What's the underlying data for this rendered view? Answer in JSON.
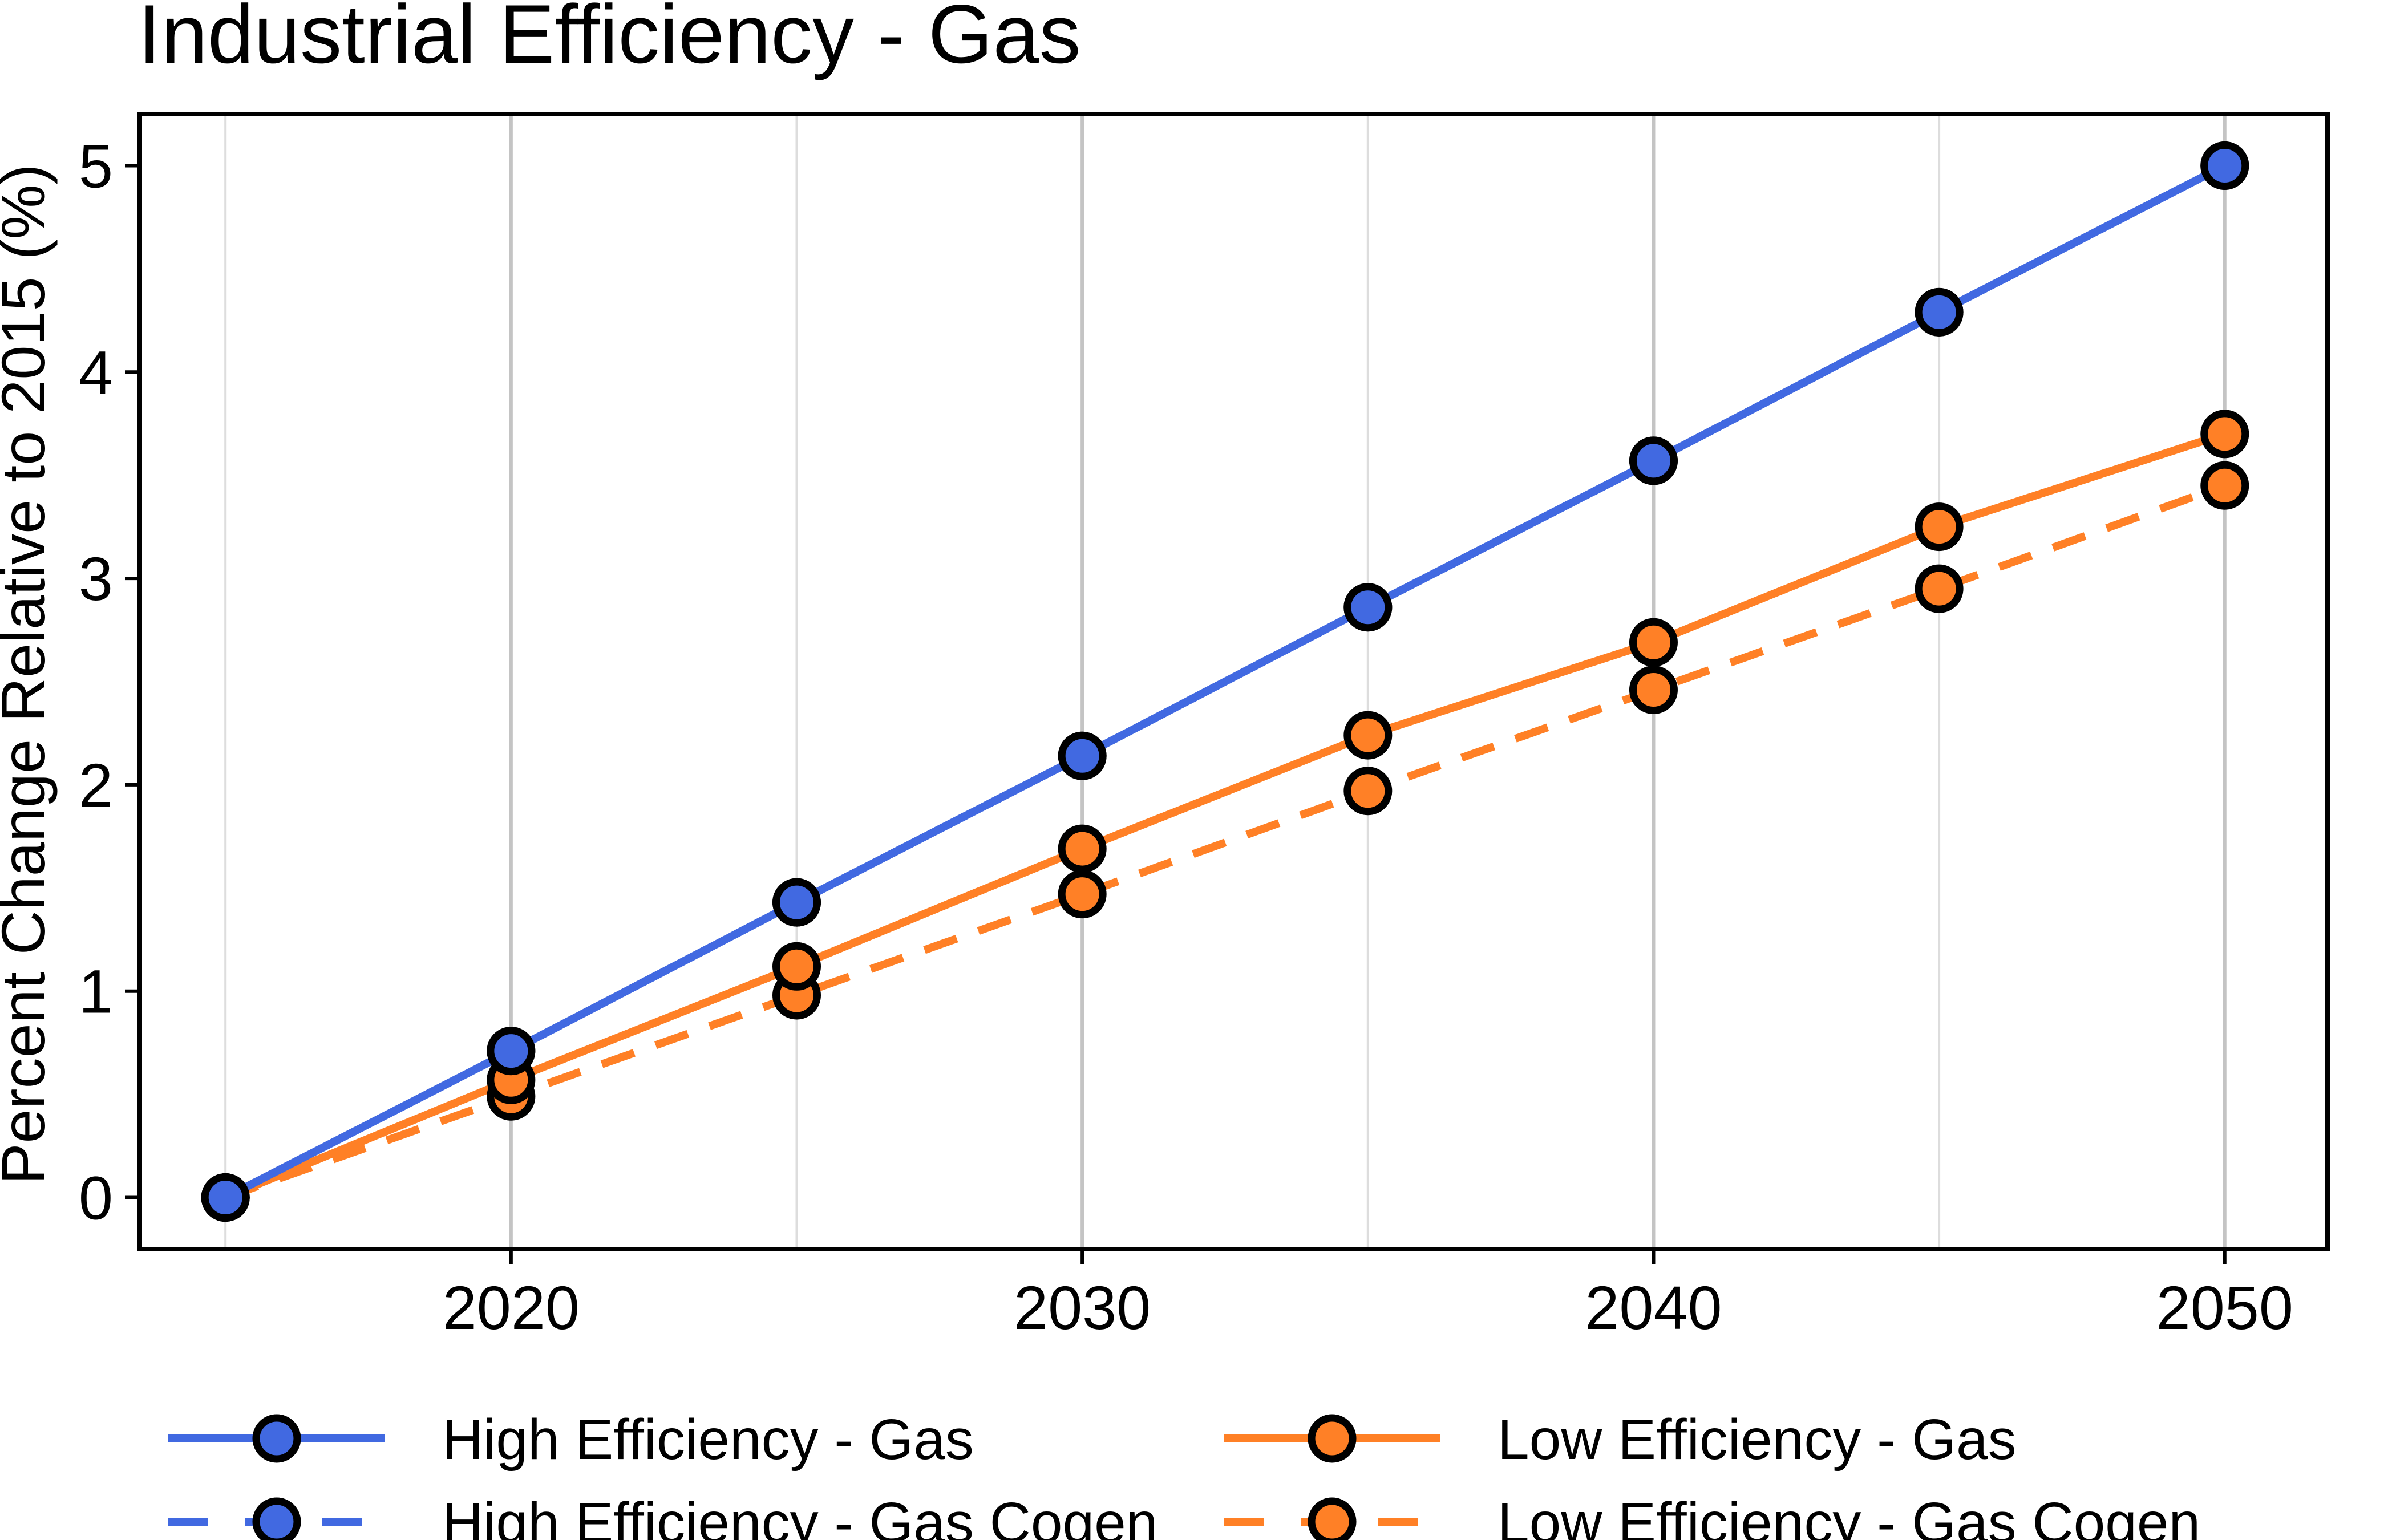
{
  "chart_data": {
    "type": "line",
    "title": "Industrial Efficiency - Gas",
    "xlabel": "",
    "ylabel": "Percent Change Relative to 2015 (%)",
    "x": [
      2015,
      2020,
      2025,
      2030,
      2035,
      2040,
      2045,
      2050
    ],
    "xlim": [
      2013.5,
      2051.8
    ],
    "ylim": [
      -0.25,
      5.25
    ],
    "xticks": [
      2020,
      2030,
      2040,
      2050
    ],
    "yticks": [
      0,
      1,
      2,
      3,
      4,
      5
    ],
    "x_minor_gridlines": [
      2015,
      2025,
      2035,
      2045
    ],
    "grid": "vertical",
    "legend_position": "bottom",
    "series": [
      {
        "name": "High Efficiency - Gas",
        "color": "#4169E1",
        "dash": "solid",
        "values": [
          0,
          0.71,
          1.43,
          2.14,
          2.86,
          3.57,
          4.29,
          5.0
        ]
      },
      {
        "name": "High Efficiency - Gas Cogen",
        "color": "#4169E1",
        "dash": "dashed",
        "values": [
          0,
          0.71,
          1.43,
          2.14,
          2.86,
          3.57,
          4.29,
          5.0
        ]
      },
      {
        "name": "Low Efficiency - Gas",
        "color": "#FF8026",
        "dash": "solid",
        "values": [
          0,
          0.57,
          1.12,
          1.69,
          2.24,
          2.69,
          3.25,
          3.7
        ]
      },
      {
        "name": "Low Efficiency - Gas Cogen",
        "color": "#FF8026",
        "dash": "dashed",
        "values": [
          0,
          0.49,
          0.98,
          1.47,
          1.97,
          2.46,
          2.95,
          3.45
        ]
      }
    ]
  }
}
